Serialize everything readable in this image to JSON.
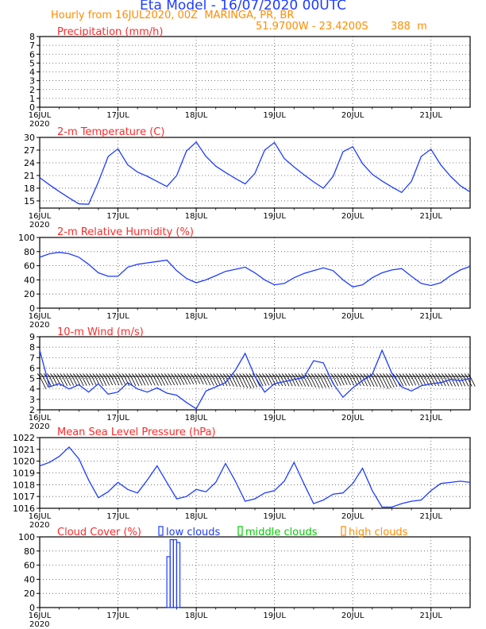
{
  "header": {
    "title": "Eta Model - 16/07/2020 00UTC",
    "subtitle": "Hourly from 16JUL2020, 00Z  MARINGA, PR, BR",
    "coords": "51.9700W - 23.4200S",
    "elevation": "388  m"
  },
  "colors": {
    "series": "#1e3cff",
    "panel_title": "#ff2a2a",
    "header": "#ff8c00",
    "middle": "#00cc00",
    "grid": "#555555"
  },
  "time_axis": {
    "labels": [
      "16JUL",
      "17JUL",
      "18JUL",
      "19JUL",
      "20JUL",
      "21JUL"
    ],
    "year": "2020",
    "range_hours": [
      0,
      132
    ]
  },
  "chart_data": [
    {
      "id": "precip",
      "type": "line",
      "title": "Precipitation (mm/h)",
      "ylim": [
        0,
        8
      ],
      "yticks": [
        0,
        1,
        2,
        3,
        4,
        5,
        6,
        7,
        8
      ],
      "grid": true,
      "x": [],
      "values": []
    },
    {
      "id": "temp",
      "type": "line",
      "title": "2-m Temperature (C)",
      "ylim": [
        13.3,
        30
      ],
      "yticks": [
        15,
        18,
        21,
        24,
        27,
        30
      ],
      "grid": true,
      "x": [
        0,
        3,
        6,
        9,
        12,
        15,
        18,
        21,
        24,
        27,
        30,
        33,
        36,
        39,
        42,
        45,
        48,
        51,
        54,
        57,
        60,
        63,
        66,
        69,
        72,
        75,
        78,
        81,
        84,
        87,
        90,
        93,
        96,
        99,
        102,
        105,
        108,
        111,
        114,
        117,
        120,
        123,
        126,
        129,
        132
      ],
      "values": [
        20.5,
        18.8,
        17.2,
        15.7,
        14.3,
        14.2,
        19.5,
        25.5,
        27.3,
        23.5,
        21.8,
        20.8,
        19.6,
        18.4,
        21.0,
        26.8,
        28.9,
        25.5,
        23.2,
        21.7,
        20.3,
        19.0,
        21.5,
        27.0,
        28.8,
        25.0,
        23.0,
        21.2,
        19.5,
        18.0,
        20.8,
        26.6,
        27.8,
        23.8,
        21.3,
        19.7,
        18.3,
        17.0,
        19.6,
        25.5,
        27.2,
        23.5,
        20.8,
        18.6,
        17.1
      ]
    },
    {
      "id": "rh",
      "type": "line",
      "title": "2-m Relative Humidity (%)",
      "ylim": [
        0,
        100
      ],
      "yticks": [
        0,
        20,
        40,
        60,
        80,
        100
      ],
      "grid": true,
      "x": [
        0,
        3,
        6,
        9,
        12,
        15,
        18,
        21,
        24,
        27,
        30,
        33,
        36,
        39,
        42,
        45,
        48,
        51,
        54,
        57,
        60,
        63,
        66,
        69,
        72,
        75,
        78,
        81,
        84,
        87,
        90,
        93,
        96,
        99,
        102,
        105,
        108,
        111,
        114,
        117,
        120,
        123,
        126,
        129,
        132
      ],
      "values": [
        72,
        77,
        79,
        77,
        72,
        62,
        50,
        45,
        45,
        58,
        62,
        64,
        66,
        68,
        53,
        42,
        36,
        40,
        46,
        52,
        55,
        58,
        50,
        40,
        33,
        35,
        43,
        49,
        53,
        57,
        53,
        40,
        30,
        33,
        43,
        50,
        54,
        56,
        45,
        35,
        32,
        36,
        46,
        54,
        59
      ]
    },
    {
      "id": "wind",
      "type": "line",
      "title": "10-m Wind (m/s)",
      "ylim": [
        2,
        9
      ],
      "yticks": [
        2,
        3,
        4,
        5,
        6,
        7,
        8,
        9
      ],
      "grid": true,
      "x": [
        0,
        3,
        6,
        9,
        12,
        15,
        18,
        21,
        24,
        27,
        30,
        33,
        36,
        39,
        42,
        45,
        48,
        51,
        54,
        57,
        60,
        63,
        66,
        69,
        72,
        75,
        78,
        81,
        84,
        87,
        90,
        93,
        96,
        99,
        102,
        105,
        108,
        111,
        114,
        117,
        120,
        123,
        126,
        129,
        132
      ],
      "values": [
        7.7,
        4.2,
        4.5,
        4.0,
        4.4,
        3.7,
        4.5,
        3.5,
        3.7,
        4.6,
        4.0,
        3.7,
        4.1,
        3.6,
        3.4,
        2.7,
        2.1,
        3.8,
        4.2,
        4.6,
        5.8,
        7.4,
        5.2,
        3.7,
        4.5,
        4.7,
        4.9,
        5.1,
        6.7,
        6.5,
        4.5,
        3.2,
        4.1,
        4.8,
        5.4,
        7.7,
        5.5,
        4.2,
        3.8,
        4.3,
        4.5,
        4.6,
        4.9,
        4.8,
        5.0
      ],
      "barb_baseline": 5.2,
      "barbs_direction": "north-west, pointing down-right"
    },
    {
      "id": "mslp",
      "type": "line",
      "title": "Mean Sea Level Pressure (hPa)",
      "ylim": [
        1016,
        1022
      ],
      "yticks": [
        1016,
        1017,
        1018,
        1019,
        1020,
        1021,
        1022
      ],
      "grid": true,
      "x": [
        0,
        3,
        6,
        9,
        12,
        15,
        18,
        21,
        24,
        27,
        30,
        33,
        36,
        39,
        42,
        45,
        48,
        51,
        54,
        57,
        60,
        63,
        66,
        69,
        72,
        75,
        78,
        81,
        84,
        87,
        90,
        93,
        96,
        99,
        102,
        105,
        108,
        111,
        114,
        117,
        120,
        123,
        126,
        129,
        132
      ],
      "values": [
        1019.6,
        1019.9,
        1020.4,
        1021.2,
        1020.2,
        1018.4,
        1016.9,
        1017.4,
        1018.2,
        1017.6,
        1017.3,
        1018.4,
        1019.6,
        1018.2,
        1016.8,
        1017.0,
        1017.6,
        1017.4,
        1018.2,
        1019.8,
        1018.3,
        1016.6,
        1016.8,
        1017.3,
        1017.5,
        1018.3,
        1019.9,
        1018.1,
        1016.4,
        1016.7,
        1017.2,
        1017.3,
        1018.1,
        1019.4,
        1017.5,
        1016.1,
        1016.1,
        1016.4,
        1016.6,
        1016.7,
        1017.5,
        1018.1,
        1018.2,
        1018.3,
        1018.2
      ]
    },
    {
      "id": "cloud",
      "type": "bar",
      "title": "Cloud Cover (%)",
      "ylim": [
        0,
        100
      ],
      "yticks": [
        0,
        20,
        40,
        60,
        80,
        100
      ],
      "grid": true,
      "legend": [
        "low clouds",
        "middle clouds",
        "high clouds"
      ],
      "series": [
        {
          "name": "low clouds",
          "x": [
            39,
            40,
            41,
            42
          ],
          "values": [
            72,
            96,
            96,
            92
          ]
        }
      ]
    }
  ]
}
